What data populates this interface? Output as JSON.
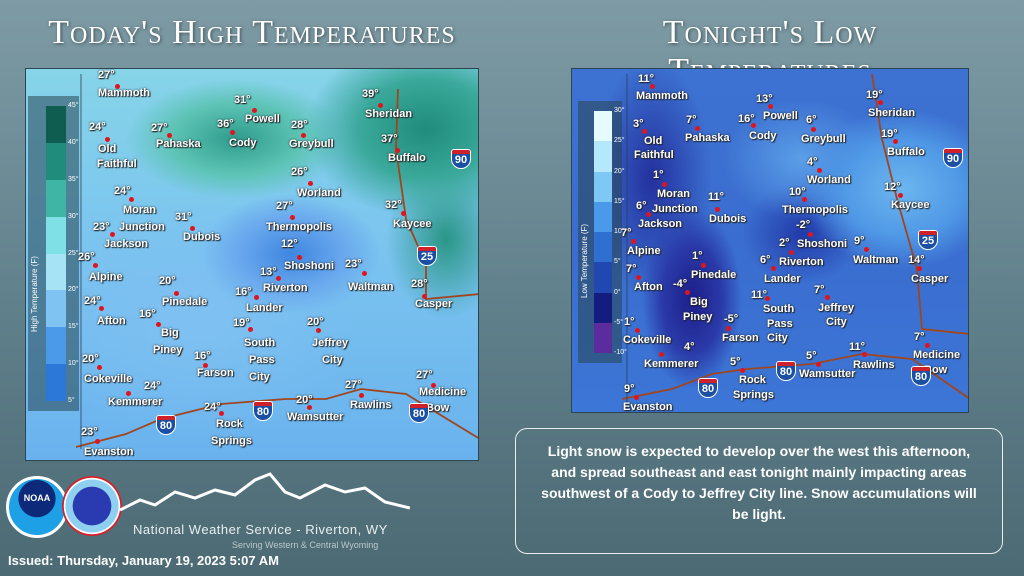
{
  "left": {
    "title": "Today's High Temperatures",
    "legend_title": "High Temperature (F)",
    "legend_ticks": [
      "45°",
      "40°",
      "35°",
      "30°",
      "25°",
      "20°",
      "15°",
      "10°",
      "5°"
    ],
    "legend_colors": [
      "#0f5c50",
      "#1f8c7c",
      "#3fb5a5",
      "#7fe0e6",
      "#a6e4f5",
      "#7ec3f2",
      "#4a9ae9",
      "#2b78d8"
    ],
    "cities": [
      {
        "name": "Mammoth",
        "temp": "27°"
      },
      {
        "name": "Old Faithful",
        "temp": "24°"
      },
      {
        "name": "Pahaska",
        "temp": "27°"
      },
      {
        "name": "Cody",
        "temp": "36°"
      },
      {
        "name": "Powell",
        "temp": "31°"
      },
      {
        "name": "Greybull",
        "temp": "28°"
      },
      {
        "name": "Sheridan",
        "temp": "39°"
      },
      {
        "name": "Buffalo",
        "temp": "37°"
      },
      {
        "name": "Worland",
        "temp": "26°"
      },
      {
        "name": "Kaycee",
        "temp": "32°"
      },
      {
        "name": "Thermopolis",
        "temp": "27°"
      },
      {
        "name": "Moran Junction",
        "temp": "24°"
      },
      {
        "name": "Jackson",
        "temp": "23°"
      },
      {
        "name": "Dubois",
        "temp": "31°"
      },
      {
        "name": "Shoshoni",
        "temp": "12°"
      },
      {
        "name": "Riverton",
        "temp": "13°"
      },
      {
        "name": "Alpine",
        "temp": "26°"
      },
      {
        "name": "Waltman",
        "temp": "23°"
      },
      {
        "name": "Casper",
        "temp": "28°"
      },
      {
        "name": "Pinedale",
        "temp": "20°"
      },
      {
        "name": "Lander",
        "temp": "16°"
      },
      {
        "name": "Afton",
        "temp": "24°"
      },
      {
        "name": "Big Piney",
        "temp": "16°"
      },
      {
        "name": "South Pass City",
        "temp": "19°"
      },
      {
        "name": "Jeffrey City",
        "temp": "20°"
      },
      {
        "name": "Farson",
        "temp": "16°"
      },
      {
        "name": "Cokeville",
        "temp": "20°"
      },
      {
        "name": "Kemmerer",
        "temp": "24°"
      },
      {
        "name": "Rock Springs",
        "temp": "24°"
      },
      {
        "name": "Wamsutter",
        "temp": "20°"
      },
      {
        "name": "Rawlins",
        "temp": "27°"
      },
      {
        "name": "Medicine Bow",
        "temp": "27°"
      },
      {
        "name": "Evanston",
        "temp": "23°"
      }
    ],
    "interstates": [
      "90",
      "25",
      "80",
      "80",
      "80"
    ]
  },
  "right": {
    "title": "Tonight's Low Temperatures",
    "legend_title": "Low Temperature (F)",
    "legend_ticks": [
      "30°",
      "25°",
      "20°",
      "15°",
      "10°",
      "5°",
      "0°",
      "-5°",
      "-10°"
    ],
    "legend_colors": [
      "#e6fbff",
      "#b5e8fb",
      "#7ec8f5",
      "#4a9ae9",
      "#2f6fd2",
      "#2148b0",
      "#141c80",
      "#5a2c9c"
    ],
    "cities": [
      {
        "name": "Mammoth",
        "temp": "11°"
      },
      {
        "name": "Old Faithful",
        "temp": "3°"
      },
      {
        "name": "Pahaska",
        "temp": "7°"
      },
      {
        "name": "Cody",
        "temp": "16°"
      },
      {
        "name": "Powell",
        "temp": "13°"
      },
      {
        "name": "Greybull",
        "temp": "6°"
      },
      {
        "name": "Sheridan",
        "temp": "19°"
      },
      {
        "name": "Buffalo",
        "temp": "19°"
      },
      {
        "name": "Worland",
        "temp": "4°"
      },
      {
        "name": "Kaycee",
        "temp": "12°"
      },
      {
        "name": "Thermopolis",
        "temp": "10°"
      },
      {
        "name": "Moran Junction",
        "temp": "1°"
      },
      {
        "name": "Jackson",
        "temp": "6°"
      },
      {
        "name": "Dubois",
        "temp": "11°"
      },
      {
        "name": "Shoshoni",
        "temp": "-2°"
      },
      {
        "name": "Riverton",
        "temp": "2°"
      },
      {
        "name": "Alpine",
        "temp": "7°"
      },
      {
        "name": "Waltman",
        "temp": "9°"
      },
      {
        "name": "Casper",
        "temp": "14°"
      },
      {
        "name": "Pinedale",
        "temp": "1°"
      },
      {
        "name": "Lander",
        "temp": "6°"
      },
      {
        "name": "Afton",
        "temp": "7°"
      },
      {
        "name": "Big Piney",
        "temp": "-4°"
      },
      {
        "name": "South Pass City",
        "temp": "11°"
      },
      {
        "name": "Jeffrey City",
        "temp": "7°"
      },
      {
        "name": "Farson",
        "temp": "-5°"
      },
      {
        "name": "Cokeville",
        "temp": "1°"
      },
      {
        "name": "Kemmerer",
        "temp": "4°"
      },
      {
        "name": "Rock Springs",
        "temp": "5°"
      },
      {
        "name": "Wamsutter",
        "temp": "5°"
      },
      {
        "name": "Rawlins",
        "temp": "11°"
      },
      {
        "name": "Medicine Bow",
        "temp": "7°"
      },
      {
        "name": "Evanston",
        "temp": "9°"
      }
    ],
    "interstates": [
      "90",
      "25",
      "80",
      "80",
      "80"
    ]
  },
  "message": "Light snow is expected to develop over the west this afternoon, and spread southeast and east tonight mainly impacting areas southwest of a Cody to Jeffrey City line. Snow accumulations will be light.",
  "footer": {
    "office": "National Weather Service - Riverton, WY",
    "tagline": "Serving Western & Central Wyoming",
    "issued": "Issued: Thursday, January 19, 2023 5:07 AM",
    "noaa_logo_text": "NOAA",
    "nws_logo_text": "NATIONAL WEATHER SERVICE"
  }
}
